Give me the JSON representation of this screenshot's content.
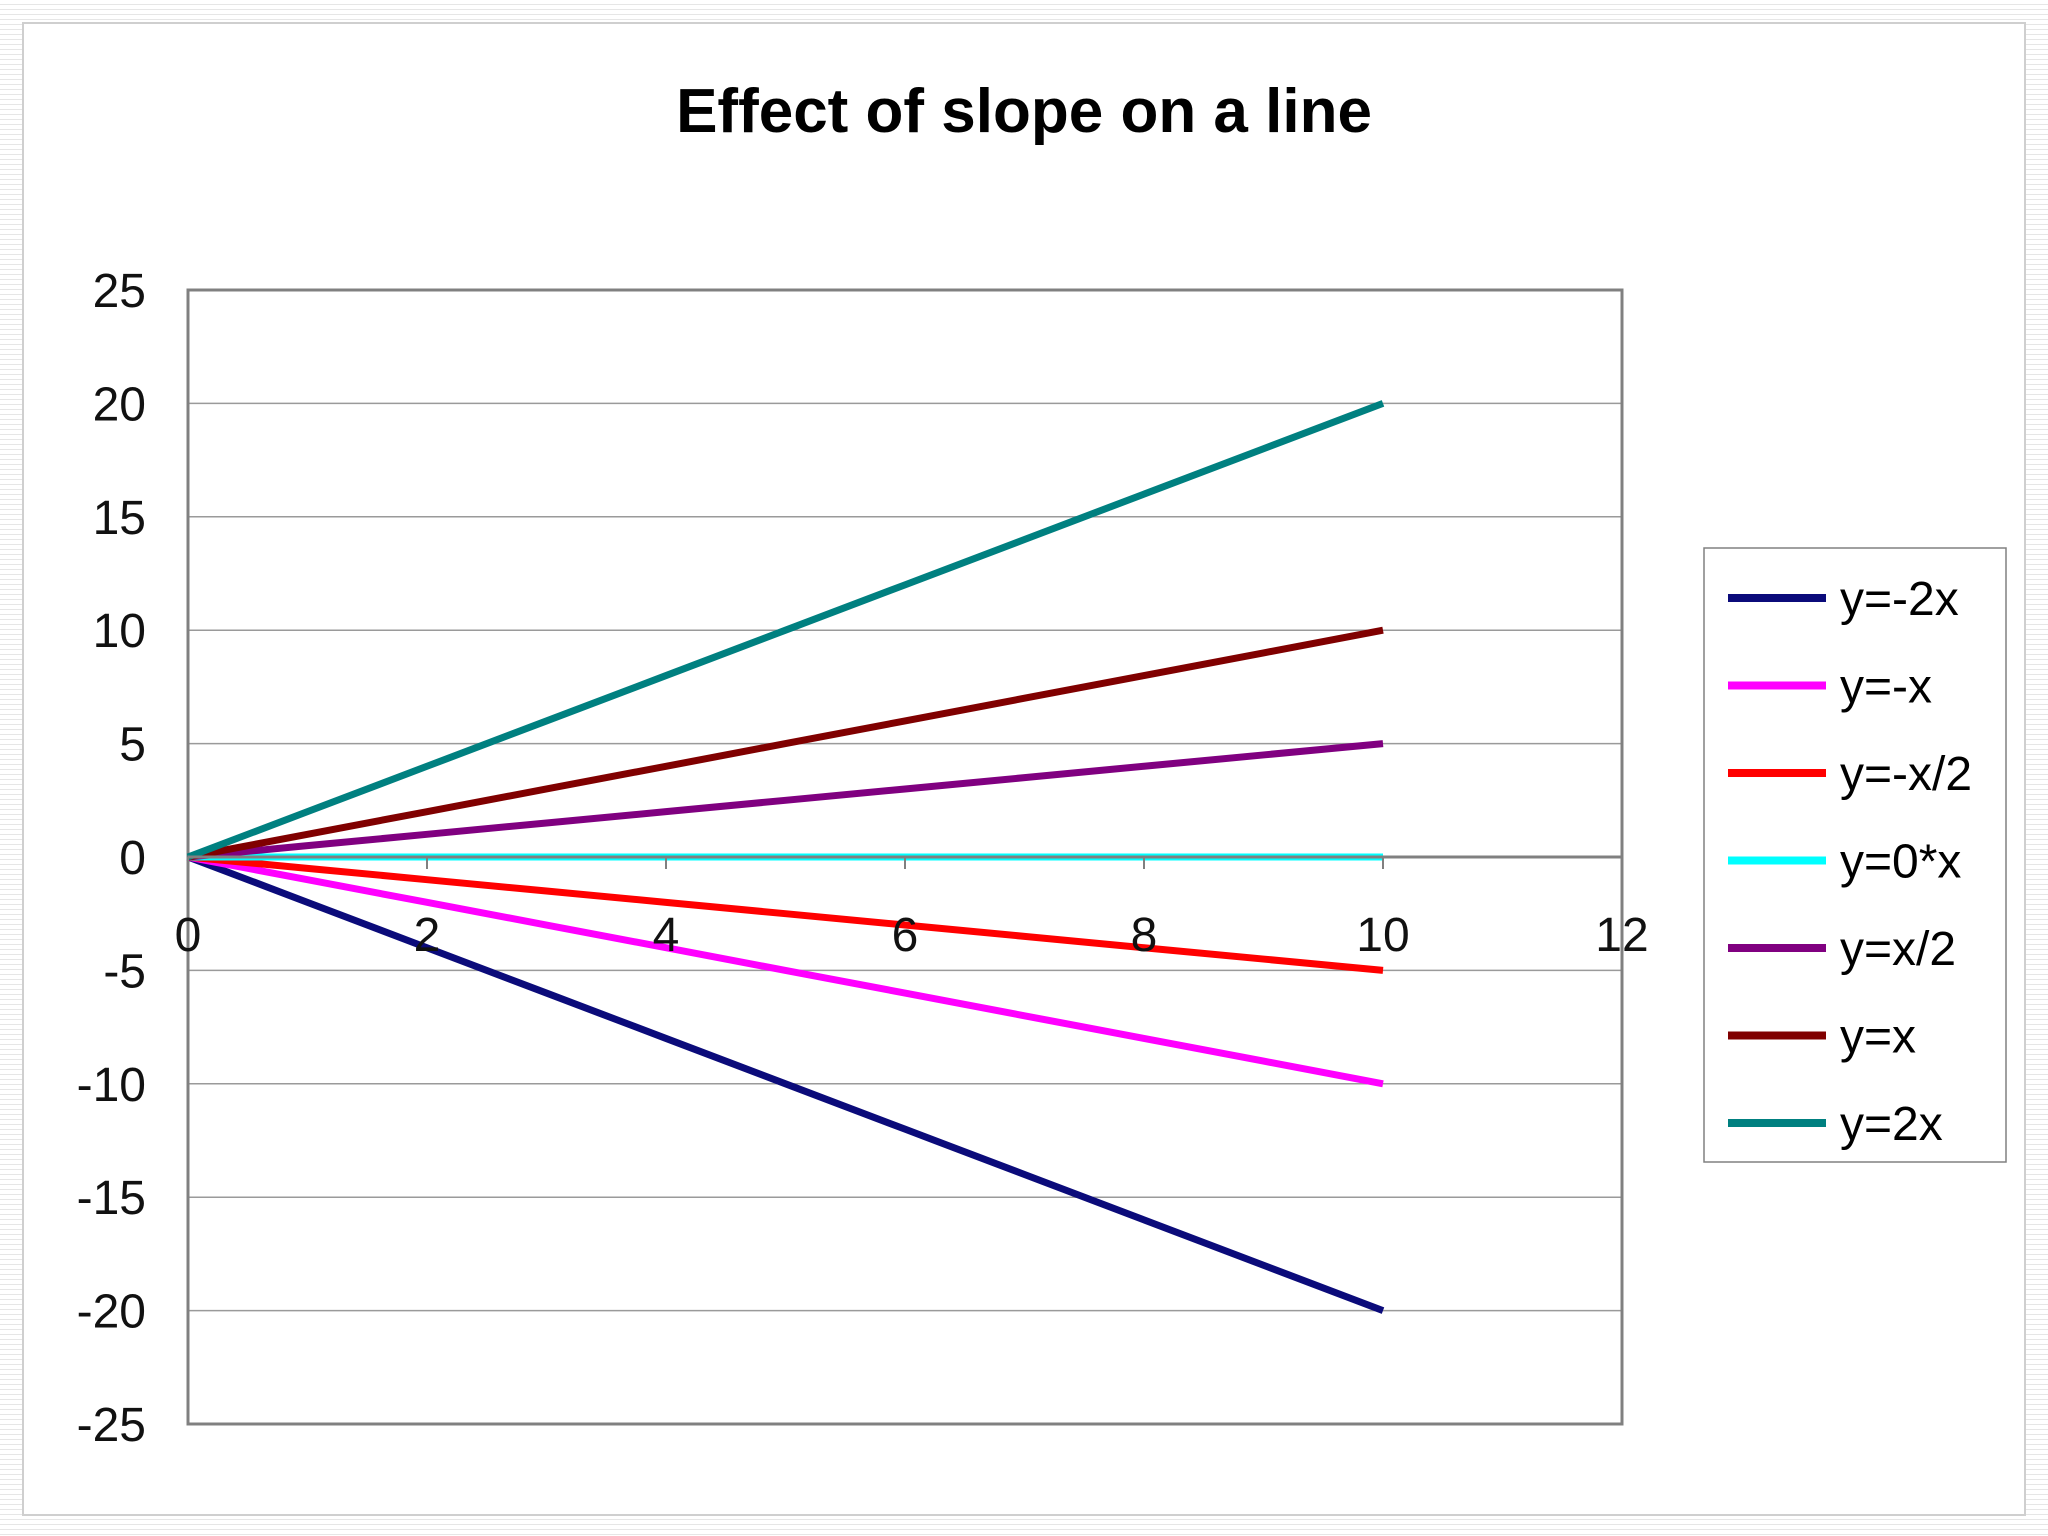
{
  "chart_data": {
    "type": "line",
    "title": "Effect of slope on a line",
    "xlabel": "",
    "ylabel": "",
    "xlim": [
      0,
      12
    ],
    "ylim": [
      -25,
      25
    ],
    "x_ticks": [
      0,
      2,
      4,
      6,
      8,
      10,
      12
    ],
    "x_tick_labels": [
      "0",
      "2",
      "4",
      "6",
      "8",
      "10",
      "12"
    ],
    "y_ticks": [
      25,
      20,
      15,
      10,
      5,
      0,
      -5,
      -10,
      -15,
      -20,
      -25
    ],
    "y_tick_labels": [
      "25",
      "20",
      "15",
      "10",
      "5",
      "0",
      "-5",
      "-10",
      "-15",
      "-20",
      "-25"
    ],
    "grid": true,
    "legend_position": "right",
    "x": [
      0,
      1,
      2,
      3,
      4,
      5,
      6,
      7,
      8,
      9,
      10
    ],
    "series": [
      {
        "name": "y=-2x",
        "color": "#0b0b7a",
        "values": [
          0,
          -2,
          -4,
          -6,
          -8,
          -10,
          -12,
          -14,
          -16,
          -18,
          -20
        ]
      },
      {
        "name": "y=-x",
        "color": "#ff00ff",
        "values": [
          0,
          -1,
          -2,
          -3,
          -4,
          -5,
          -6,
          -7,
          -8,
          -9,
          -10
        ]
      },
      {
        "name": "y=-x/2",
        "color": "#ff0000",
        "values": [
          0,
          -0.5,
          -1,
          -1.5,
          -2,
          -2.5,
          -3,
          -3.5,
          -4,
          -4.5,
          -5
        ]
      },
      {
        "name": "y=0*x",
        "color": "#00ffff",
        "values": [
          0,
          0,
          0,
          0,
          0,
          0,
          0,
          0,
          0,
          0,
          0
        ]
      },
      {
        "name": "y=x/2",
        "color": "#800080",
        "values": [
          0,
          0.5,
          1,
          1.5,
          2,
          2.5,
          3,
          3.5,
          4,
          4.5,
          5
        ]
      },
      {
        "name": "y=x",
        "color": "#800000",
        "values": [
          0,
          1,
          2,
          3,
          4,
          5,
          6,
          7,
          8,
          9,
          10
        ]
      },
      {
        "name": "y=2x",
        "color": "#008080",
        "values": [
          0,
          2,
          4,
          6,
          8,
          10,
          12,
          14,
          16,
          18,
          20
        ]
      }
    ]
  }
}
